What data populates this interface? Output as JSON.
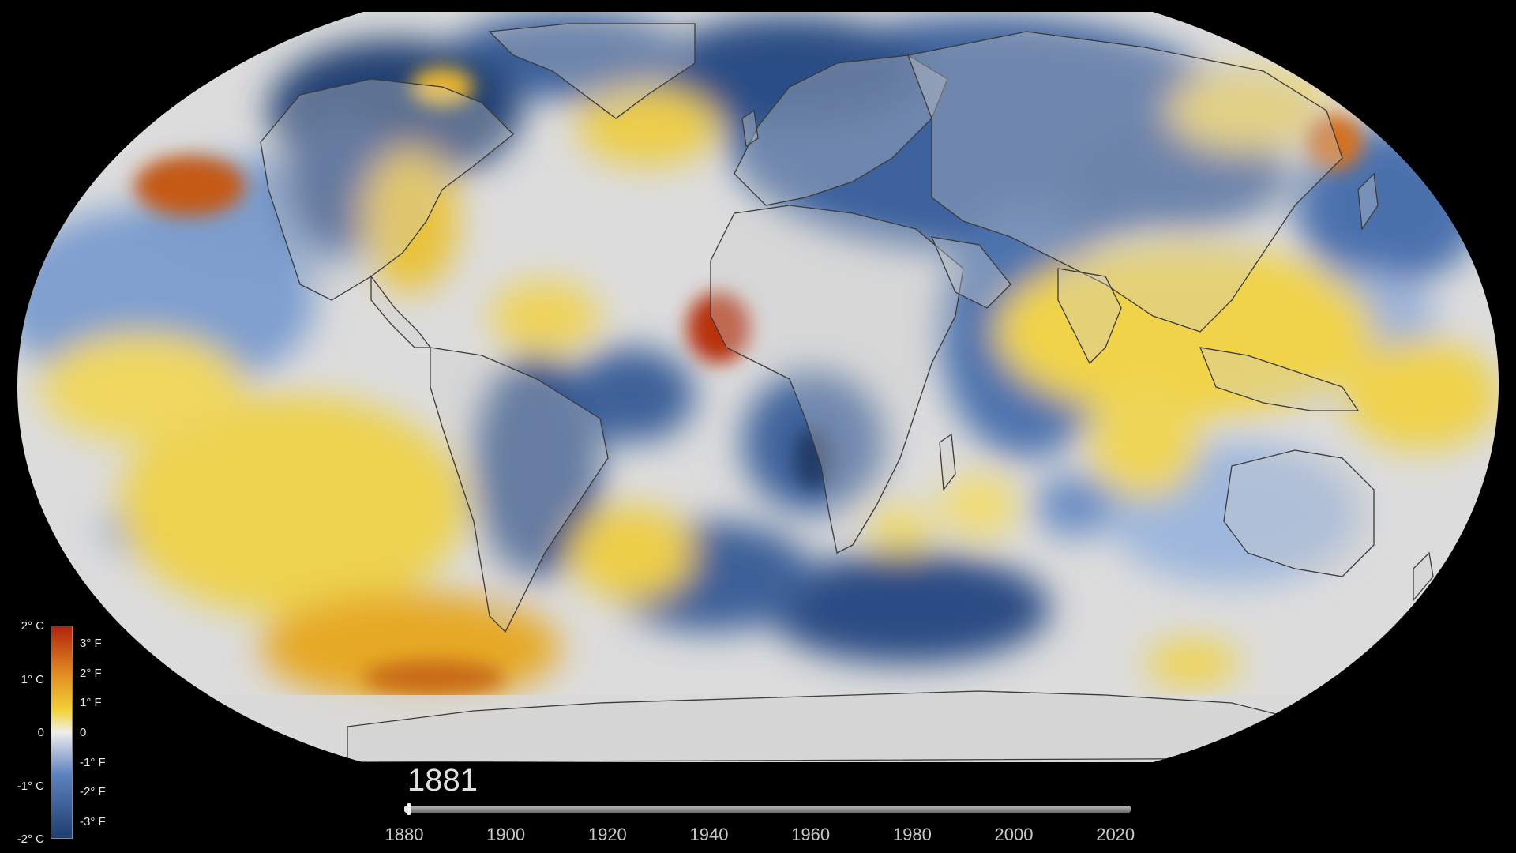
{
  "visualization": {
    "type": "global-temperature-anomaly-map",
    "projection": "robinson"
  },
  "legend": {
    "celsius_labels": [
      {
        "text": "2° C",
        "value": 2
      },
      {
        "text": "1° C",
        "value": 1
      },
      {
        "text": "0",
        "value": 0
      },
      {
        "text": "-1° C",
        "value": -1
      },
      {
        "text": "-2° C",
        "value": -2
      }
    ],
    "fahrenheit_labels": [
      {
        "text": "3° F",
        "value_c": 1.667
      },
      {
        "text": "2° F",
        "value_c": 1.111
      },
      {
        "text": "1° F",
        "value_c": 0.556
      },
      {
        "text": "0",
        "value_c": 0
      },
      {
        "text": "-1° F",
        "value_c": -0.556
      },
      {
        "text": "-2° F",
        "value_c": -1.111
      },
      {
        "text": "-3° F",
        "value_c": -1.667
      }
    ],
    "range_c": [
      -2,
      2
    ],
    "colors": {
      "min": "#1f3d6e",
      "low": "#5d83bf",
      "neutral": "#eeeeee",
      "high": "#f2d43a",
      "warm": "#e08a1f",
      "max": "#b0230d"
    }
  },
  "timeline": {
    "current_year": "1881",
    "range": [
      1880,
      2023
    ],
    "ticks": [
      "1880",
      "1900",
      "1920",
      "1940",
      "1960",
      "1980",
      "2000",
      "2020"
    ]
  },
  "map_colors": {
    "ocean_neutral": "#dcdcdc",
    "land": "#cfcfcf",
    "coastline": "#3a3a3a",
    "background": "#000000"
  }
}
